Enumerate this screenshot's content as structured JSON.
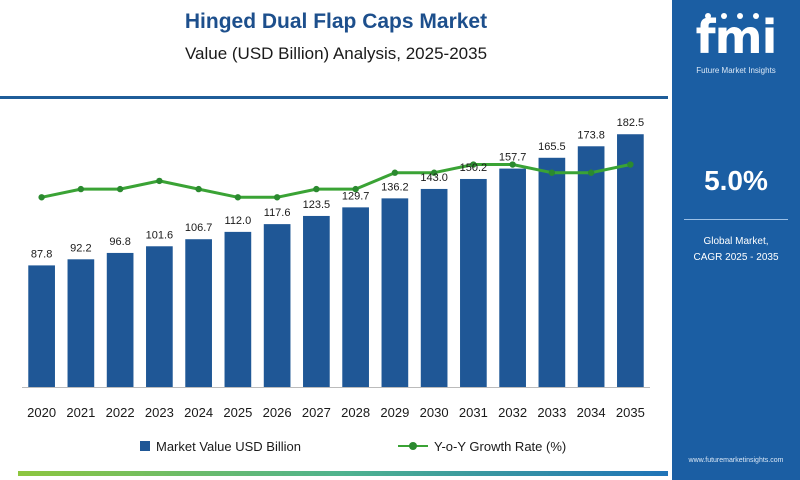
{
  "title": "Hinged Dual Flap Caps Market",
  "subtitle": "Value (USD Billion) Analysis, 2025-2035",
  "brand": {
    "mark": "fmi",
    "name": "Future Market Insights",
    "website": "www.futuremarketinsights.com"
  },
  "sidebar": {
    "cagr_value": "5.0%",
    "cagr_label_line1": "Global Market,",
    "cagr_label_line2": "CAGR 2025 - 2035"
  },
  "colors": {
    "bar": "#1f5796",
    "line": "#3aa335",
    "marker": "#2b8a2f",
    "sidebar": "#1b5ea3",
    "title": "#1d4f8c"
  },
  "chart_data": {
    "type": "bar",
    "categories": [
      "2020",
      "2021",
      "2022",
      "2023",
      "2024",
      "2025",
      "2026",
      "2027",
      "2028",
      "2029",
      "2030",
      "2031",
      "2032",
      "2033",
      "2034",
      "2035"
    ],
    "series": [
      {
        "name": "Market Value USD Billion",
        "type": "bar",
        "values": [
          87.8,
          92.2,
          96.8,
          101.6,
          106.7,
          112.0,
          117.6,
          123.5,
          129.7,
          136.2,
          143.0,
          150.2,
          157.7,
          165.5,
          173.8,
          182.5
        ]
      },
      {
        "name": "Y-o-Y Growth Rate (%)",
        "type": "line",
        "values": [
          4.9,
          5.0,
          5.0,
          5.1,
          5.0,
          4.9,
          4.9,
          5.0,
          5.0,
          5.2,
          5.2,
          5.3,
          5.3,
          5.2,
          5.2,
          5.3
        ]
      }
    ],
    "data_labels": [
      "87.8",
      "92.2",
      "96.8",
      "101.6",
      "106.7",
      "112.0",
      "117.6",
      "123.5",
      "129.7",
      "136.2",
      "143.0",
      "150.2",
      "157.7",
      "165.5",
      "173.8",
      "182.5"
    ],
    "ylim": [
      0,
      200
    ],
    "line_ylim": [
      4.5,
      5.6
    ],
    "grid": false,
    "legend_position": "bottom"
  }
}
